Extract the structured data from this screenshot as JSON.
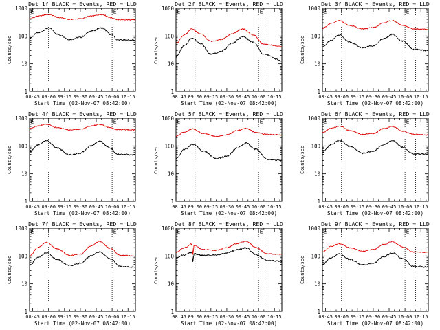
{
  "colors": {
    "events": "#000000",
    "lld": "#dd0000",
    "axes": "#000000",
    "background": "#ffffff"
  },
  "shared": {
    "ylabel": "Counts/sec",
    "xlabel": "Start Time (02-Nov-07 08:42:00)",
    "ytick_labels": [
      "1",
      "10",
      "100",
      "1000"
    ],
    "xtick_labels": [
      "08:45",
      "09:00",
      "09:15",
      "09:30",
      "09:45",
      "10:00",
      "10:15"
    ],
    "marker_label": "E"
  },
  "chart_data": [
    {
      "type": "line",
      "title": "Det 1f BLACK = Events, RED = LLD",
      "xlabel": "Start Time (02-Nov-07 08:42:00)",
      "ylabel": "Counts/sec",
      "yscale": "log",
      "ylim": [
        1,
        1000
      ],
      "xlim": [
        "08:42",
        "10:22"
      ],
      "markers": [
        "08:42",
        "09:00",
        "10:00"
      ],
      "series": [
        {
          "key": "events",
          "points": [
            [
              "08:42",
              85
            ],
            [
              "08:50",
              130
            ],
            [
              "09:00",
              195
            ],
            [
              "09:10",
              110
            ],
            [
              "09:20",
              75
            ],
            [
              "09:30",
              90
            ],
            [
              "09:40",
              150
            ],
            [
              "09:50",
              195
            ],
            [
              "10:00",
              110
            ],
            [
              "10:05",
              72
            ],
            [
              "10:22",
              70
            ]
          ]
        },
        {
          "key": "lld",
          "points": [
            [
              "08:42",
              420
            ],
            [
              "08:50",
              520
            ],
            [
              "09:00",
              600
            ],
            [
              "09:10",
              460
            ],
            [
              "09:20",
              400
            ],
            [
              "09:30",
              420
            ],
            [
              "09:40",
              520
            ],
            [
              "09:50",
              600
            ],
            [
              "10:00",
              450
            ],
            [
              "10:05",
              390
            ],
            [
              "10:22",
              380
            ]
          ]
        }
      ]
    },
    {
      "type": "line",
      "title": "Det 2f BLACK = Events, RED = LLD",
      "xlabel": "Start Time (02-Nov-07 08:42:00)",
      "ylabel": "Counts/sec",
      "yscale": "log",
      "ylim": [
        1,
        1000
      ],
      "xlim": [
        "08:42",
        "10:22"
      ],
      "markers": [
        "08:42",
        "09:00",
        "10:00",
        "10:10"
      ],
      "series": [
        {
          "key": "events",
          "points": [
            [
              "08:42",
              18
            ],
            [
              "08:50",
              45
            ],
            [
              "08:57",
              85
            ],
            [
              "09:05",
              55
            ],
            [
              "09:15",
              22
            ],
            [
              "09:25",
              28
            ],
            [
              "09:35",
              55
            ],
            [
              "09:45",
              95
            ],
            [
              "09:55",
              60
            ],
            [
              "10:05",
              22
            ],
            [
              "10:22",
              13
            ]
          ]
        },
        {
          "key": "lld",
          "points": [
            [
              "08:42",
              55
            ],
            [
              "08:50",
              110
            ],
            [
              "08:57",
              180
            ],
            [
              "09:05",
              120
            ],
            [
              "09:15",
              65
            ],
            [
              "09:25",
              75
            ],
            [
              "09:35",
              120
            ],
            [
              "09:45",
              180
            ],
            [
              "09:55",
              110
            ],
            [
              "10:05",
              50
            ],
            [
              "10:22",
              42
            ]
          ]
        }
      ]
    },
    {
      "type": "line",
      "title": "Det 3f BLACK = Events, RED = LLD",
      "xlabel": "Start Time (02-Nov-07 08:42:00)",
      "ylabel": "Counts/sec",
      "yscale": "log",
      "ylim": [
        1,
        1000
      ],
      "xlim": [
        "08:42",
        "10:22"
      ],
      "markers": [
        "08:42",
        "09:00",
        "10:00",
        "10:10"
      ],
      "series": [
        {
          "key": "events",
          "points": [
            [
              "08:42",
              40
            ],
            [
              "08:50",
              70
            ],
            [
              "08:58",
              110
            ],
            [
              "09:08",
              60
            ],
            [
              "09:20",
              38
            ],
            [
              "09:30",
              45
            ],
            [
              "09:40",
              80
            ],
            [
              "09:48",
              115
            ],
            [
              "09:58",
              65
            ],
            [
              "10:08",
              33
            ],
            [
              "10:22",
              30
            ]
          ]
        },
        {
          "key": "lld",
          "points": [
            [
              "08:42",
              190
            ],
            [
              "08:50",
              280
            ],
            [
              "08:58",
              360
            ],
            [
              "09:08",
              240
            ],
            [
              "09:20",
              180
            ],
            [
              "09:30",
              200
            ],
            [
              "09:40",
              300
            ],
            [
              "09:48",
              360
            ],
            [
              "09:58",
              240
            ],
            [
              "10:08",
              180
            ],
            [
              "10:22",
              175
            ]
          ]
        }
      ]
    },
    {
      "type": "line",
      "title": "Det 4f BLACK = Events, RED = LLD",
      "xlabel": "Start Time (02-Nov-07 08:42:00)",
      "ylabel": "Counts/sec",
      "yscale": "log",
      "ylim": [
        1,
        1000
      ],
      "xlim": [
        "08:42",
        "10:22"
      ],
      "markers": [
        "08:42",
        "09:00",
        "10:00"
      ],
      "series": [
        {
          "key": "events",
          "points": [
            [
              "08:42",
              60
            ],
            [
              "08:50",
              110
            ],
            [
              "08:58",
              155
            ],
            [
              "09:08",
              85
            ],
            [
              "09:20",
              48
            ],
            [
              "09:30",
              55
            ],
            [
              "09:40",
              100
            ],
            [
              "09:48",
              150
            ],
            [
              "09:58",
              85
            ],
            [
              "10:05",
              50
            ],
            [
              "10:22",
              48
            ]
          ]
        },
        {
          "key": "lld",
          "points": [
            [
              "08:42",
              430
            ],
            [
              "08:50",
              530
            ],
            [
              "08:58",
              600
            ],
            [
              "09:08",
              460
            ],
            [
              "09:20",
              380
            ],
            [
              "09:30",
              400
            ],
            [
              "09:40",
              520
            ],
            [
              "09:48",
              600
            ],
            [
              "09:58",
              460
            ],
            [
              "10:05",
              390
            ],
            [
              "10:22",
              380
            ]
          ]
        }
      ]
    },
    {
      "type": "line",
      "title": "Det 5f BLACK = Events, RED = LLD",
      "xlabel": "Start Time (02-Nov-07 08:42:00)",
      "ylabel": "Counts/sec",
      "yscale": "log",
      "ylim": [
        1,
        1000
      ],
      "xlim": [
        "08:42",
        "10:22"
      ],
      "markers": [
        "08:42",
        "09:00",
        "10:00"
      ],
      "series": [
        {
          "key": "events",
          "points": [
            [
              "08:42",
              35
            ],
            [
              "08:50",
              75
            ],
            [
              "08:58",
              115
            ],
            [
              "09:08",
              65
            ],
            [
              "09:20",
              35
            ],
            [
              "09:30",
              42
            ],
            [
              "09:40",
              85
            ],
            [
              "09:48",
              125
            ],
            [
              "09:58",
              75
            ],
            [
              "10:08",
              33
            ],
            [
              "10:22",
              30
            ]
          ]
        },
        {
          "key": "lld",
          "points": [
            [
              "08:42",
              220
            ],
            [
              "08:50",
              320
            ],
            [
              "08:58",
              410
            ],
            [
              "09:08",
              280
            ],
            [
              "09:20",
              220
            ],
            [
              "09:30",
              250
            ],
            [
              "09:40",
              360
            ],
            [
              "09:48",
              430
            ],
            [
              "09:58",
              300
            ],
            [
              "10:08",
              260
            ],
            [
              "10:22",
              250
            ]
          ]
        }
      ]
    },
    {
      "type": "line",
      "title": "Det 6f BLACK = Events, RED = LLD",
      "xlabel": "Start Time (02-Nov-07 08:42:00)",
      "ylabel": "Counts/sec",
      "yscale": "log",
      "ylim": [
        1,
        1000
      ],
      "xlim": [
        "08:42",
        "10:22"
      ],
      "markers": [
        "08:42",
        "09:00",
        "10:00",
        "10:10"
      ],
      "series": [
        {
          "key": "events",
          "points": [
            [
              "08:42",
              60
            ],
            [
              "08:50",
              110
            ],
            [
              "08:58",
              160
            ],
            [
              "09:08",
              95
            ],
            [
              "09:20",
              55
            ],
            [
              "09:30",
              65
            ],
            [
              "09:40",
              110
            ],
            [
              "09:48",
              155
            ],
            [
              "09:58",
              90
            ],
            [
              "10:08",
              52
            ],
            [
              "10:22",
              50
            ]
          ]
        },
        {
          "key": "lld",
          "points": [
            [
              "08:42",
              300
            ],
            [
              "08:50",
              430
            ],
            [
              "08:58",
              520
            ],
            [
              "09:08",
              360
            ],
            [
              "09:20",
              260
            ],
            [
              "09:30",
              280
            ],
            [
              "09:40",
              420
            ],
            [
              "09:48",
              510
            ],
            [
              "09:58",
              340
            ],
            [
              "10:08",
              260
            ],
            [
              "10:22",
              250
            ]
          ]
        }
      ]
    },
    {
      "type": "line",
      "title": "Det 7f BLACK = Events, RED = LLD",
      "xlabel": "Start Time (02-Nov-07 08:42:00)",
      "ylabel": "Counts/sec",
      "yscale": "log",
      "ylim": [
        1,
        1000
      ],
      "xlim": [
        "08:42",
        "10:22"
      ],
      "markers": [
        "08:42",
        "09:00",
        "10:00"
      ],
      "series": [
        {
          "key": "events",
          "points": [
            [
              "08:42",
              45
            ],
            [
              "08:50",
              90
            ],
            [
              "08:58",
              130
            ],
            [
              "09:08",
              75
            ],
            [
              "09:20",
              45
            ],
            [
              "09:30",
              55
            ],
            [
              "09:40",
              100
            ],
            [
              "09:48",
              140
            ],
            [
              "09:58",
              80
            ],
            [
              "10:08",
              42
            ],
            [
              "10:22",
              40
            ]
          ]
        },
        {
          "key": "lld",
          "points": [
            [
              "08:42",
              100
            ],
            [
              "08:50",
              200
            ],
            [
              "08:58",
              310
            ],
            [
              "09:08",
              180
            ],
            [
              "09:20",
              105
            ],
            [
              "09:30",
              115
            ],
            [
              "09:40",
              230
            ],
            [
              "09:48",
              340
            ],
            [
              "09:58",
              190
            ],
            [
              "10:08",
              105
            ],
            [
              "10:22",
              100
            ]
          ]
        }
      ]
    },
    {
      "type": "line",
      "title": "Det 8f BLACK = Events, RED = LLD",
      "xlabel": "Start Time (02-Nov-07 08:42:00)",
      "ylabel": "Counts/sec",
      "yscale": "log",
      "ylim": [
        1,
        1000
      ],
      "xlim": [
        "08:42",
        "10:22"
      ],
      "markers": [
        "08:42",
        "09:00",
        "10:00",
        "10:10"
      ],
      "series": [
        {
          "key": "events",
          "points": [
            [
              "08:42",
              85
            ],
            [
              "08:50",
              110
            ],
            [
              "08:57",
              135
            ],
            [
              "08:58",
              60
            ],
            [
              "08:59",
              120
            ],
            [
              "09:08",
              105
            ],
            [
              "09:20",
              110
            ],
            [
              "09:30",
              130
            ],
            [
              "09:40",
              170
            ],
            [
              "09:48",
              195
            ],
            [
              "09:58",
              110
            ],
            [
              "10:08",
              70
            ],
            [
              "10:22",
              65
            ]
          ]
        },
        {
          "key": "lld",
          "points": [
            [
              "08:42",
              135
            ],
            [
              "08:50",
              200
            ],
            [
              "08:57",
              270
            ],
            [
              "08:58",
              110
            ],
            [
              "08:59",
              240
            ],
            [
              "09:08",
              170
            ],
            [
              "09:20",
              160
            ],
            [
              "09:30",
              200
            ],
            [
              "09:40",
              280
            ],
            [
              "09:48",
              340
            ],
            [
              "09:58",
              200
            ],
            [
              "10:08",
              120
            ],
            [
              "10:22",
              115
            ]
          ]
        }
      ]
    },
    {
      "type": "line",
      "title": "Det 9f BLACK = Events, RED = LLD",
      "xlabel": "Start Time (02-Nov-07 08:42:00)",
      "ylabel": "Counts/sec",
      "yscale": "log",
      "ylim": [
        1,
        1000
      ],
      "xlim": [
        "08:42",
        "10:22"
      ],
      "markers": [
        "08:42",
        "09:00",
        "10:00",
        "10:10"
      ],
      "series": [
        {
          "key": "events",
          "points": [
            [
              "08:42",
              50
            ],
            [
              "08:50",
              85
            ],
            [
              "08:58",
              120
            ],
            [
              "09:08",
              75
            ],
            [
              "09:20",
              48
            ],
            [
              "09:30",
              55
            ],
            [
              "09:40",
              95
            ],
            [
              "09:48",
              130
            ],
            [
              "09:58",
              80
            ],
            [
              "10:08",
              42
            ],
            [
              "10:22",
              40
            ]
          ]
        },
        {
          "key": "lld",
          "points": [
            [
              "08:42",
              140
            ],
            [
              "08:50",
              220
            ],
            [
              "08:58",
              280
            ],
            [
              "09:08",
              200
            ],
            [
              "09:20",
              150
            ],
            [
              "09:30",
              170
            ],
            [
              "09:40",
              260
            ],
            [
              "09:48",
              330
            ],
            [
              "09:58",
              210
            ],
            [
              "10:08",
              140
            ],
            [
              "10:22",
              135
            ]
          ]
        }
      ]
    }
  ]
}
